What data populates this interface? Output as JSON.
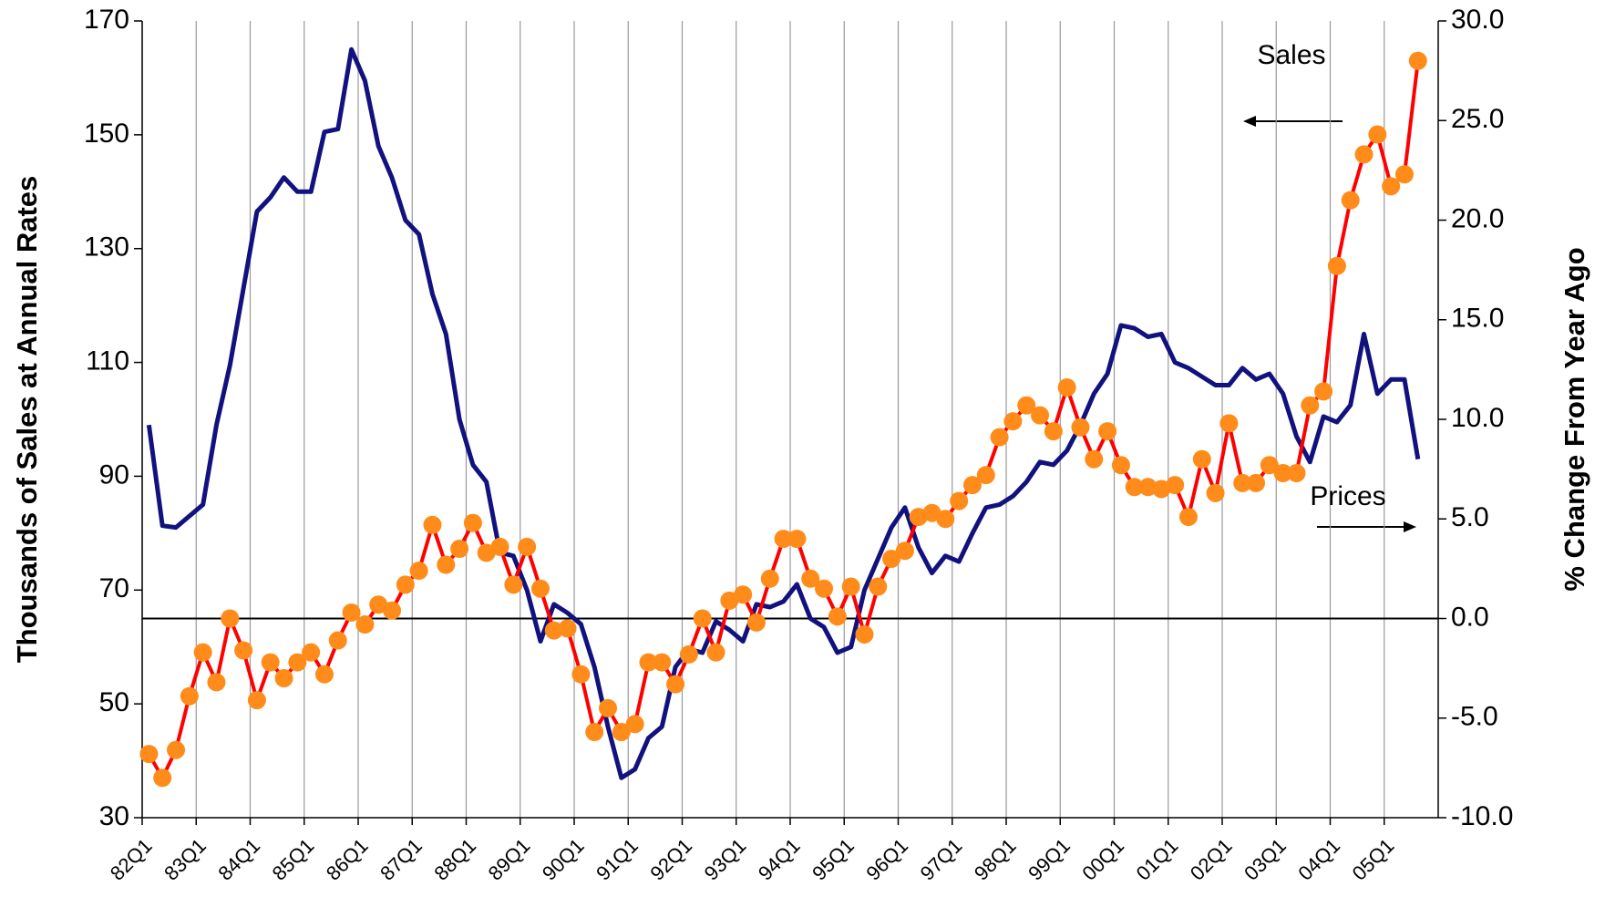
{
  "chart_data": {
    "type": "line",
    "y_label": "Thousands of Sales at Annual Rates",
    "y2_label": "% Change From Year Ago",
    "categories": [
      "82Q1",
      null,
      null,
      null,
      "83Q1",
      null,
      null,
      null,
      "84Q1",
      null,
      null,
      null,
      "85Q1",
      null,
      null,
      null,
      "86Q1",
      null,
      null,
      null,
      "87Q1",
      null,
      null,
      null,
      "88Q1",
      null,
      null,
      null,
      "89Q1",
      null,
      null,
      null,
      "90Q1",
      null,
      null,
      null,
      "91Q1",
      null,
      null,
      null,
      "92Q1",
      null,
      null,
      null,
      "93Q1",
      null,
      null,
      null,
      "94Q1",
      null,
      null,
      null,
      "95Q1",
      null,
      null,
      null,
      "96Q1",
      null,
      null,
      null,
      "97Q1",
      null,
      null,
      null,
      "98Q1",
      null,
      null,
      null,
      "99Q1",
      null,
      null,
      null,
      "00Q1",
      null,
      null,
      null,
      "01Q1",
      null,
      null,
      null,
      "02Q1",
      null,
      null,
      null,
      "03Q1",
      null,
      null,
      null,
      "04Q1",
      null,
      null,
      null,
      "05Q1",
      null,
      null,
      null
    ],
    "series": [
      {
        "name": "Sales",
        "color": "#12127f",
        "axis": "y",
        "values": [
          99,
          81.3,
          81,
          83,
          85,
          99,
          109.5,
          123,
          136.5,
          139,
          142.5,
          140,
          140,
          150.5,
          151,
          165,
          159.5,
          148,
          142.5,
          135,
          132.5,
          122,
          115,
          100,
          92,
          89,
          76.6,
          76,
          70,
          61,
          67.5,
          66,
          64,
          56.5,
          46,
          37,
          38.5,
          44,
          46,
          56.5,
          59.6,
          59,
          64.5,
          63,
          61,
          67.5,
          67,
          68,
          71,
          65,
          63.5,
          59,
          60,
          70,
          75.5,
          81,
          84.5,
          77.5,
          73,
          76,
          75,
          80,
          84.5,
          85,
          86.5,
          89,
          92.5,
          92,
          94.5,
          99,
          104.5,
          108,
          116.5,
          116,
          114.5,
          115,
          110,
          109,
          107.5,
          106,
          106,
          109,
          107,
          108,
          104.5,
          97,
          92.5,
          100.5,
          99.5,
          102.5,
          115,
          104.5,
          107,
          107,
          93,
          null
        ]
      },
      {
        "name": "Prices",
        "color": "#ff0000",
        "marker_color": "#ff8c1a",
        "axis": "y2",
        "values": [
          -6.8,
          -8.0,
          -6.6,
          -3.9,
          -1.7,
          -3.2,
          0.0,
          -1.6,
          -4.1,
          -2.2,
          -3.0,
          -2.2,
          -1.7,
          -2.8,
          -1.1,
          0.3,
          -0.3,
          0.7,
          0.4,
          1.7,
          2.4,
          4.7,
          2.7,
          3.5,
          4.8,
          3.3,
          3.6,
          1.7,
          3.6,
          1.5,
          -0.6,
          -0.5,
          -2.8,
          -5.7,
          -4.5,
          -5.7,
          -5.3,
          -2.2,
          -2.2,
          -3.3,
          -1.8,
          0.0,
          -1.7,
          0.9,
          1.2,
          -0.2,
          2.0,
          4.0,
          4.0,
          2.0,
          1.5,
          0.1,
          1.6,
          -0.8,
          1.6,
          3.0,
          3.4,
          5.1,
          5.3,
          5.0,
          5.9,
          6.7,
          7.2,
          9.1,
          9.9,
          10.7,
          10.2,
          9.4,
          11.6,
          9.6,
          8.0,
          9.4,
          7.7,
          6.6,
          6.6,
          6.5,
          6.7,
          5.1,
          8.0,
          6.3,
          9.8,
          6.8,
          6.8,
          7.7,
          7.3,
          7.3,
          10.7,
          11.4,
          17.7,
          21.0,
          23.3,
          24.3,
          21.7,
          22.3,
          28.0,
          null
        ]
      }
    ],
    "ylim": [
      30,
      170
    ],
    "yticks": [
      30,
      50,
      70,
      90,
      110,
      130,
      150,
      170
    ],
    "y2lim": [
      -10,
      30
    ],
    "y2ticks": [
      {
        "value": -10,
        "label": "-10.0"
      },
      {
        "value": -5,
        "label": "-5.0"
      },
      {
        "value": 0,
        "label": "0.0"
      },
      {
        "value": 5,
        "label": "5.0"
      },
      {
        "value": 10,
        "label": "10.0"
      },
      {
        "value": 15,
        "label": "15.0"
      },
      {
        "value": 20,
        "label": "20.0"
      },
      {
        "value": 25,
        "label": "25.0"
      },
      {
        "value": 30,
        "label": "30.0"
      }
    ],
    "zero_line": true
  }
}
